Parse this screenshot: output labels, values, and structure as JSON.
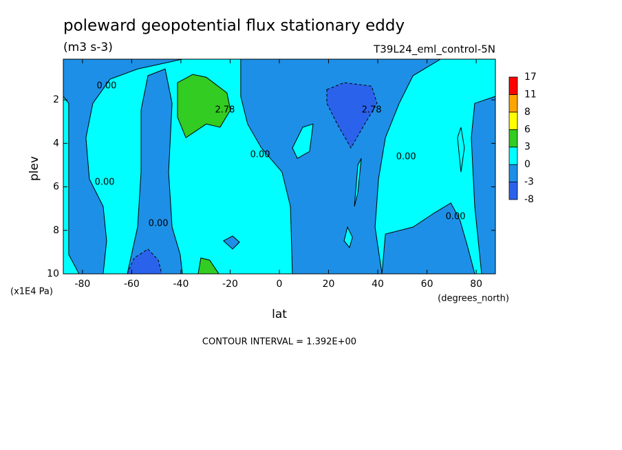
{
  "chart_data": {
    "type": "contour",
    "title": "poleward geopotential flux stationary eddy",
    "subtitle": "(m3 s-3)",
    "dataset": "T39L24_eml_control-5N",
    "x_label": "lat",
    "x_units": "(degrees_north)",
    "y_label": "plev",
    "y_units": "(x1E4 Pa)",
    "footnote": "CONTOUR INTERVAL = 1.392E+00",
    "xlim": [
      -87.8,
      87.8
    ],
    "xticks": [
      -80,
      -60,
      -40,
      -20,
      0,
      20,
      40,
      60,
      80
    ],
    "ylim": [
      0.13,
      10
    ],
    "y_reversed": true,
    "yticks": [
      2,
      4,
      6,
      8,
      10
    ],
    "levels": [
      -8,
      -3,
      0,
      3,
      6,
      8,
      11,
      17
    ],
    "level_colors": [
      "#2a62ec",
      "#1e8fe6",
      "#00ffff",
      "#33cc22",
      "#ffff00",
      "#ffa500",
      "#ff0000"
    ],
    "regions": [
      {
        "level": 0,
        "lat": [
          -87.8,
          87.8,
          87.8,
          -87.8
        ],
        "plev": [
          0.13,
          0.13,
          10,
          10
        ]
      },
      {
        "level": -3,
        "lat": [
          -87.8,
          -39.4,
          -57.6,
          -68.8,
          -75.8,
          -78.6,
          -77.2,
          -71.6,
          -70.2,
          -71.6,
          -81.4,
          -85.6,
          -85.6,
          -87.8
        ],
        "plev": [
          0.13,
          0.13,
          0.58,
          1.05,
          2.16,
          3.74,
          5.64,
          6.9,
          8.48,
          10,
          10,
          9.11,
          2.16,
          1.84
        ]
      },
      {
        "level": -3,
        "lat": [
          -53.4,
          -46.4,
          -43.6,
          -45.0,
          -43.6,
          -40.3,
          -39.4,
          -61.8,
          -57.6,
          -56.2,
          -56.2
        ],
        "plev": [
          0.89,
          0.58,
          2.16,
          5.32,
          7.85,
          9.11,
          10,
          10,
          7.85,
          5.32,
          2.47
        ]
      },
      {
        "level": -3,
        "lat": [
          -15.7,
          65.5,
          54.3,
          48.7,
          43.1,
          40.3,
          38.9,
          41.7,
          5.3,
          4.5,
          1.1,
          -7.3,
          -12.9,
          -15.7
        ],
        "plev": [
          0.13,
          0.13,
          0.89,
          2.16,
          3.74,
          5.64,
          7.85,
          10,
          10,
          6.9,
          5.32,
          4.21,
          3.11,
          1.84
        ]
      },
      {
        "level": -3,
        "lat": [
          79.4,
          87.8,
          87.8,
          82.2,
          79.4,
          78.0
        ],
        "plev": [
          2.16,
          1.84,
          10,
          10,
          6.9,
          3.74
        ]
      },
      {
        "level": -3,
        "lat": [
          41.7,
          43.1,
          54.3,
          62.7,
          69.7,
          73.4,
          76.6,
          79.4
        ],
        "plev": [
          10,
          8.17,
          7.85,
          7.22,
          6.74,
          7.53,
          8.79,
          10
        ]
      },
      {
        "level": -8,
        "lat": [
          19.3,
          26.3,
          37.5,
          39.7,
          34.7,
          29.1,
          23.5,
          19.3
        ],
        "plev": [
          1.53,
          1.21,
          1.37,
          2.16,
          3.11,
          4.21,
          3.11,
          2.16
        ]
      },
      {
        "level": -8,
        "lat": [
          -61.8,
          -59.0,
          -53.4,
          -49.2,
          -47.8
        ],
        "plev": [
          10,
          9.27,
          8.86,
          9.37,
          10
        ]
      },
      {
        "level": 3,
        "lat": [
          -41.4,
          -35.2,
          -29.7,
          -21.3,
          -19.9,
          -24.1,
          -29.7,
          -38.0,
          -41.4
        ],
        "plev": [
          1.21,
          0.83,
          0.96,
          1.68,
          2.47,
          3.26,
          3.11,
          3.74,
          2.79
        ]
      },
      {
        "level": 3,
        "lat": [
          -33.0,
          -31.9,
          -28.3,
          -24.6
        ],
        "plev": [
          10,
          9.27,
          9.37,
          10
        ]
      },
      {
        "level": -3,
        "lat": [
          -22.7,
          -19.0,
          -16.2,
          -19.0
        ],
        "plev": [
          8.48,
          8.26,
          8.54,
          8.86
        ]
      },
      {
        "level": 0,
        "lat": [
          5.3,
          9.5,
          13.7,
          12.3,
          7.3
        ],
        "plev": [
          4.21,
          3.26,
          3.11,
          4.37,
          4.69
        ]
      },
      {
        "level": 0,
        "lat": [
          26.3,
          27.7,
          29.7,
          28.5
        ],
        "plev": [
          8.48,
          7.85,
          8.32,
          8.79
        ]
      },
      {
        "level": 0,
        "lat": [
          30.5,
          31.9,
          33.3,
          31.9
        ],
        "plev": [
          6.9,
          5.0,
          4.69,
          6.27
        ]
      },
      {
        "level": 0,
        "lat": [
          72.4,
          73.8,
          75.2,
          73.8
        ],
        "plev": [
          3.74,
          3.26,
          4.21,
          5.32
        ]
      }
    ],
    "contour_labels": [
      {
        "text": "0.00",
        "lat": -70.2,
        "plev": 1.37
      },
      {
        "text": "0.00",
        "lat": -71.0,
        "plev": 5.8
      },
      {
        "text": "0.00",
        "lat": -49.2,
        "plev": 7.69
      },
      {
        "text": "0.00",
        "lat": -7.8,
        "plev": 4.53
      },
      {
        "text": "0.00",
        "lat": 51.5,
        "plev": 4.62
      },
      {
        "text": "0.00",
        "lat": 71.6,
        "plev": 7.38
      },
      {
        "text": "2.78",
        "lat": -22.1,
        "plev": 2.47
      },
      {
        "text": "2.78",
        "lat": 37.5,
        "plev": 2.47
      }
    ]
  }
}
